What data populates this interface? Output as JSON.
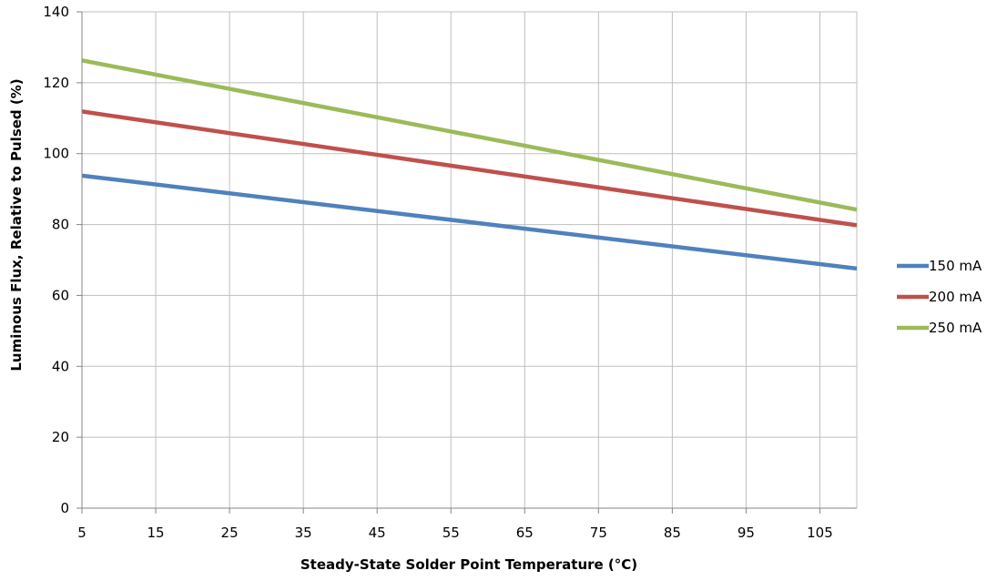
{
  "chart_data": {
    "type": "line",
    "xlabel": "Steady-State Solder Point Temperature (°C)",
    "ylabel": "Luminous Flux, Relative to Pulsed (%)",
    "xlim": [
      5,
      110
    ],
    "ylim": [
      0,
      140
    ],
    "x_ticks": [
      5,
      15,
      25,
      35,
      45,
      55,
      65,
      75,
      85,
      95,
      105
    ],
    "y_ticks": [
      0,
      20,
      40,
      60,
      80,
      100,
      120,
      140
    ],
    "grid": true,
    "legend_position": "right",
    "series": [
      {
        "name": "150 mA",
        "color": "#4f81bd",
        "x": [
          5,
          110
        ],
        "y": [
          93.8,
          67.6
        ]
      },
      {
        "name": "200 mA",
        "color": "#c0504d",
        "x": [
          5,
          110
        ],
        "y": [
          111.9,
          79.8
        ]
      },
      {
        "name": "250 mA",
        "color": "#9bbb59",
        "x": [
          5,
          110
        ],
        "y": [
          126.3,
          84.2
        ]
      }
    ]
  }
}
